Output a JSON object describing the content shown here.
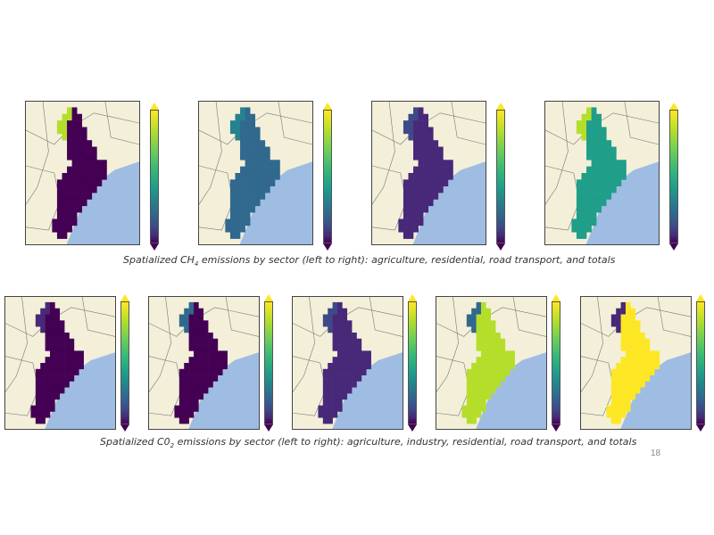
{
  "slide": {
    "page_number": "18",
    "ch4_caption": {
      "prefix": "Spatialized CH",
      "subscript": "4",
      "suffix": " emissions by sector (left to right): agriculture, residential, road transport, and totals"
    },
    "co2_caption": {
      "prefix": "Spatialized C0",
      "subscript": "2",
      "suffix": " emissions by sector (left to right): agriculture, industry, residential, road transport, and totals"
    }
  },
  "colors": {
    "land": "#f3efd9",
    "sea": "#9fbde3",
    "viridis_low": "#440154",
    "viridis_high": "#fde725"
  },
  "ch4_panels": [
    {
      "sector": "agriculture",
      "main_level": 0.02,
      "hot_level": 0.85
    },
    {
      "sector": "residential",
      "main_level": 0.35,
      "hot_level": 0.45
    },
    {
      "sector": "road transport",
      "main_level": 0.15,
      "hot_level": 0.2
    },
    {
      "sector": "totals",
      "main_level": 0.55,
      "hot_level": 0.9
    }
  ],
  "co2_panels": [
    {
      "sector": "agriculture",
      "main_level": 0.02,
      "hot_level": 0.1
    },
    {
      "sector": "industry",
      "main_level": 0.02,
      "hot_level": 0.3
    },
    {
      "sector": "residential",
      "main_level": 0.15,
      "hot_level": 0.25
    },
    {
      "sector": "road transport",
      "main_level": 0.88,
      "hot_level": 0.3
    },
    {
      "sector": "totals",
      "main_level": 0.97,
      "hot_level": 0.1
    }
  ]
}
